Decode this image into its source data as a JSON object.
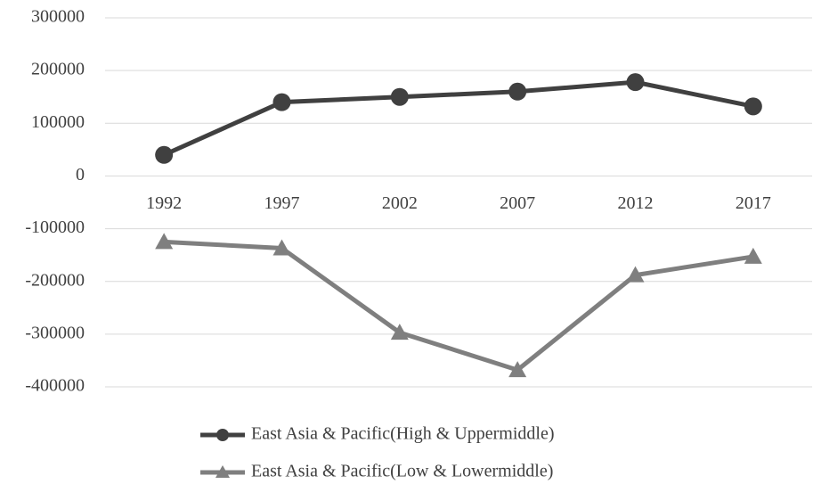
{
  "chart_data": {
    "type": "line",
    "categories": [
      "1992",
      "1997",
      "2002",
      "2007",
      "2012",
      "2017"
    ],
    "series": [
      {
        "name": "East Asia & Pacific(High & Uppermiddle)",
        "color": "#404040",
        "marker": "circle",
        "values": [
          40000,
          140000,
          150000,
          160000,
          178000,
          132000
        ]
      },
      {
        "name": "East Asia & Pacific(Low & Lowermiddle)",
        "color": "#7f7f7f",
        "marker": "triangle",
        "values": [
          -125000,
          -137000,
          -297000,
          -368000,
          -188000,
          -153000
        ]
      }
    ],
    "ylim": [
      -400000,
      300000
    ],
    "yticks": [
      -400000,
      -300000,
      -200000,
      -100000,
      0,
      100000,
      200000,
      300000
    ],
    "grid": true,
    "legend": "bottom"
  }
}
